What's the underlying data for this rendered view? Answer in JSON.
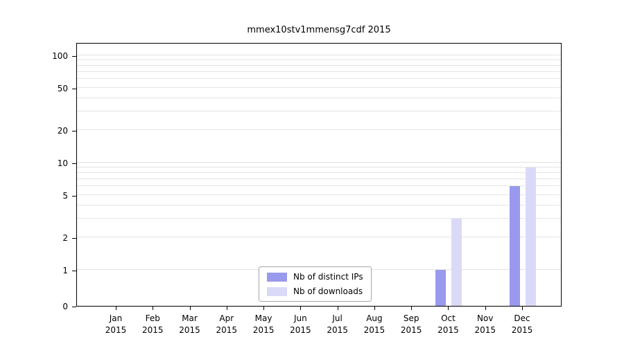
{
  "chart_data": {
    "type": "bar",
    "title": "mmex10stv1mmensg7cdf 2015",
    "xlabel": "",
    "ylabel": "",
    "scale": "symlog",
    "ylim": [
      0,
      100
    ],
    "yticks": [
      0,
      1,
      2,
      5,
      10,
      20,
      50,
      100
    ],
    "grid_values": [
      1,
      2,
      3,
      4,
      5,
      6,
      7,
      8,
      9,
      10,
      20,
      30,
      40,
      50,
      60,
      70,
      80,
      90,
      100
    ],
    "x_tick_months": [
      "Jan",
      "Feb",
      "Mar",
      "Apr",
      "May",
      "Jun",
      "Jul",
      "Aug",
      "Sep",
      "Oct",
      "Nov",
      "Dec"
    ],
    "x_tick_year": "2015",
    "legend_position": "lower center",
    "grid": "on",
    "series": [
      {
        "name": "Nb of distinct IPs",
        "color": "#9999ed",
        "values": [
          0,
          0,
          0,
          0,
          0,
          0,
          0,
          0,
          0,
          1,
          0,
          6
        ]
      },
      {
        "name": "Nb of downloads",
        "color": "#dadaf8",
        "values": [
          0,
          0,
          0,
          0,
          0,
          0,
          0,
          0,
          0,
          3,
          0,
          9
        ]
      }
    ]
  }
}
